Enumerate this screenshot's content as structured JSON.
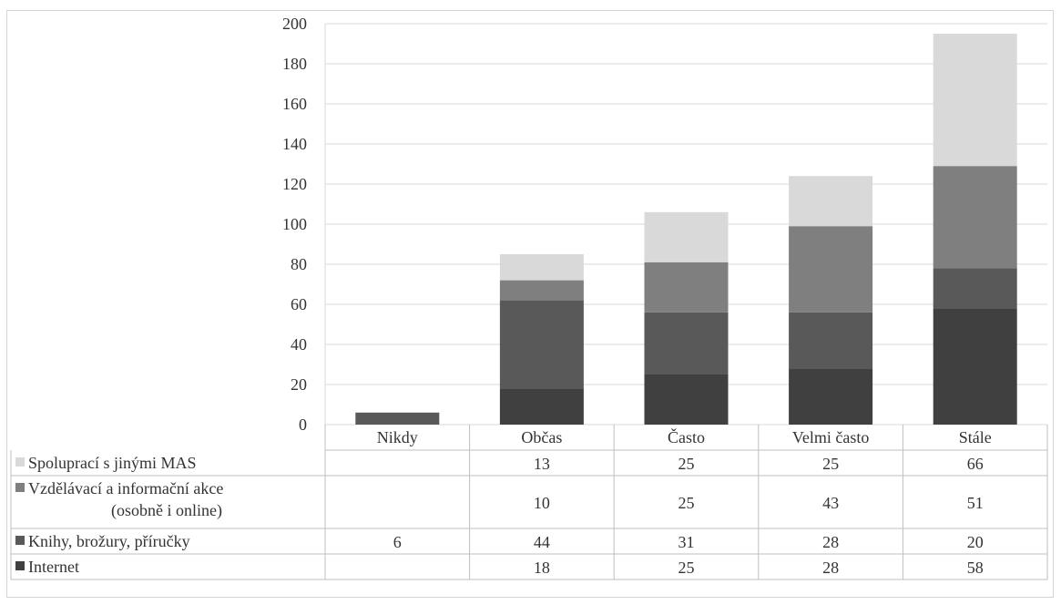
{
  "chart_data": {
    "type": "bar",
    "stacked": true,
    "categories": [
      "Nikdy",
      "Občas",
      "Často",
      "Velmi často",
      "Stále"
    ],
    "series": [
      {
        "name": "Internet",
        "values": [
          null,
          18,
          25,
          28,
          58
        ],
        "color": "#404040",
        "table": [
          "",
          "18",
          "25",
          "28",
          "58"
        ]
      },
      {
        "name": "Knihy, brožury, příručky",
        "values": [
          6,
          44,
          31,
          28,
          20
        ],
        "color": "#595959",
        "table": [
          "6",
          "44",
          "31",
          "28",
          "20"
        ]
      },
      {
        "name": "Vzdělávací a informační akce (osobně i online)",
        "name_lines": [
          "Vzdělávací a informační akce",
          "(osobně i online)"
        ],
        "values": [
          null,
          10,
          25,
          43,
          51
        ],
        "color": "#7f7f7f",
        "table": [
          "",
          "10",
          "25",
          "43",
          "51"
        ]
      },
      {
        "name": "Spoluprací s jinými MAS",
        "values": [
          null,
          13,
          25,
          25,
          66
        ],
        "color": "#d9d9d9",
        "table": [
          "",
          "13",
          "25",
          "25",
          "66"
        ]
      }
    ],
    "yticks": [
      "0",
      "20",
      "40",
      "60",
      "80",
      "100",
      "120",
      "140",
      "160",
      "180",
      "200"
    ],
    "ylim": [
      0,
      200
    ],
    "grid": true,
    "legend": "data-table",
    "title": "",
    "xlabel": "",
    "ylabel": ""
  }
}
